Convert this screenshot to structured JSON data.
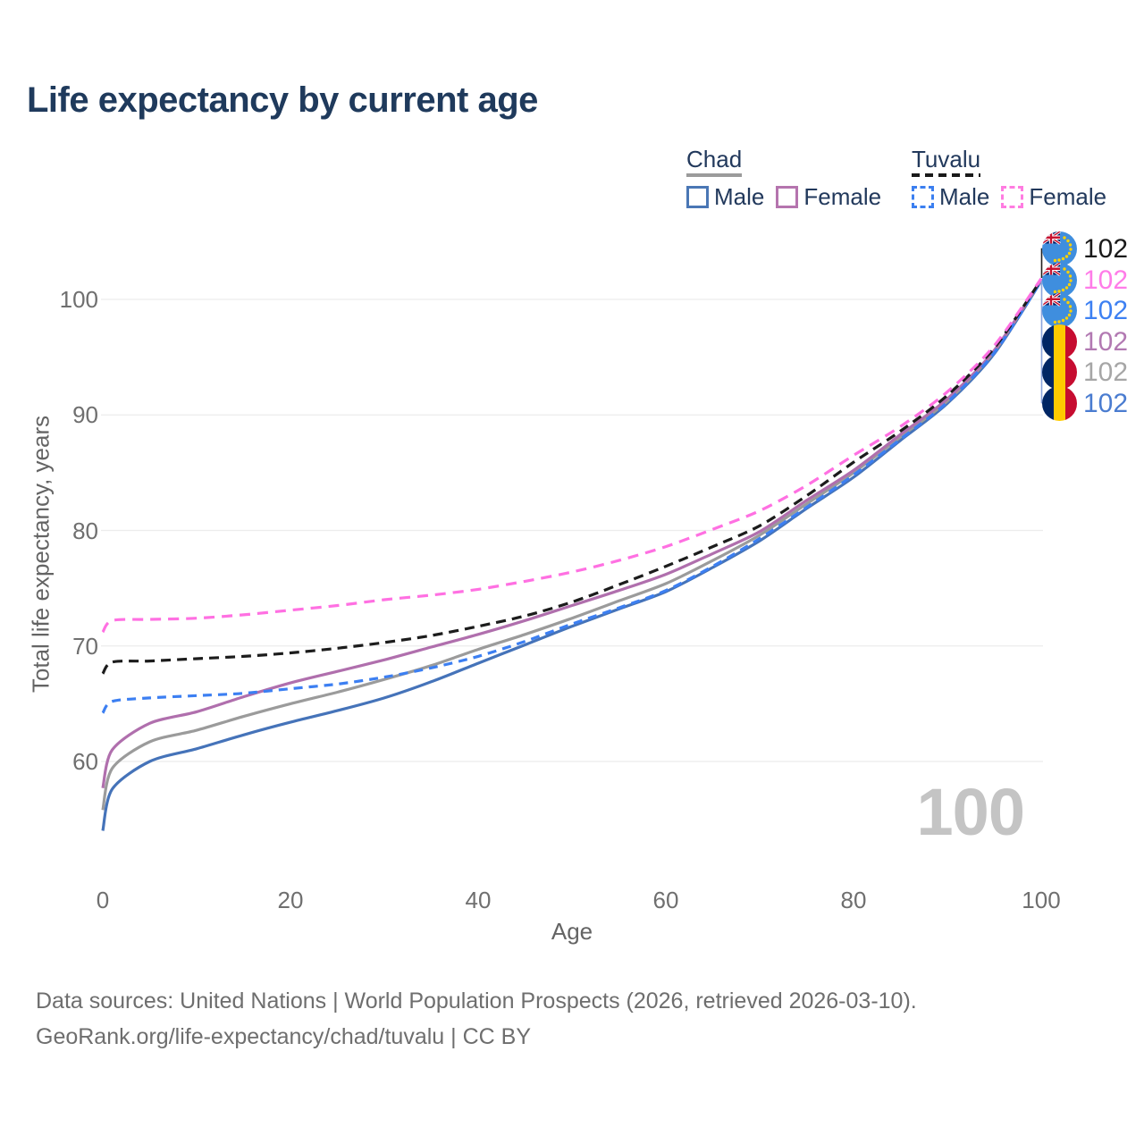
{
  "title": "Life expectancy by current age",
  "watermark": "100",
  "legend": {
    "groups": [
      {
        "name": "Chad",
        "line_style": "solid",
        "underline_color": "#9b9b9b",
        "items": [
          {
            "label": "Male",
            "color": "#4a77b5"
          },
          {
            "label": "Female",
            "color": "#b574ae"
          }
        ]
      },
      {
        "name": "Tuvalu",
        "line_style": "dashed",
        "underline_color": "#1a1a1a",
        "items": [
          {
            "label": "Male",
            "color": "#3b7ff0"
          },
          {
            "label": "Female",
            "color": "#ff7ce1"
          }
        ]
      }
    ]
  },
  "chart_data": {
    "type": "line",
    "title": "Life expectancy by current age",
    "xlabel": "Age",
    "ylabel": "Total life expectancy, years",
    "xlim": [
      0,
      100
    ],
    "ylim": [
      53,
      103
    ],
    "xticks": [
      0,
      20,
      40,
      60,
      80,
      100
    ],
    "yticks": [
      60,
      70,
      80,
      90,
      100
    ],
    "grid": "horizontal",
    "legend_position": "top-right",
    "x": [
      0,
      1,
      5,
      10,
      15,
      20,
      25,
      30,
      35,
      40,
      45,
      50,
      55,
      60,
      65,
      70,
      75,
      80,
      85,
      90,
      95,
      100
    ],
    "series": [
      {
        "id": "chad-male",
        "name": "Chad Male",
        "country": "Chad",
        "sex": "Male",
        "color": "#4573b9",
        "dash": null,
        "values": [
          54.0,
          57.6,
          60.0,
          61.1,
          62.3,
          63.4,
          64.4,
          65.5,
          66.9,
          68.5,
          70.1,
          71.7,
          73.2,
          74.7,
          76.8,
          79.1,
          81.9,
          84.6,
          87.8,
          91.0,
          95.3,
          101.6
        ]
      },
      {
        "id": "chad-all",
        "name": "Chad Both sexes",
        "country": "Chad",
        "sex": "Both",
        "color": "#9b9b9b",
        "dash": null,
        "values": [
          55.8,
          59.4,
          61.7,
          62.7,
          63.9,
          65.0,
          66.0,
          67.1,
          68.3,
          69.7,
          71.0,
          72.4,
          73.9,
          75.4,
          77.4,
          79.6,
          82.3,
          85.0,
          88.1,
          91.2,
          95.5,
          101.7
        ]
      },
      {
        "id": "chad-female",
        "name": "Chad Female",
        "country": "Chad",
        "sex": "Female",
        "color": "#b06fad",
        "dash": null,
        "values": [
          57.7,
          61.0,
          63.3,
          64.3,
          65.6,
          66.8,
          67.8,
          68.8,
          69.9,
          71.0,
          72.2,
          73.5,
          74.8,
          76.2,
          78.0,
          79.9,
          82.6,
          85.2,
          88.3,
          91.4,
          95.6,
          101.7
        ]
      },
      {
        "id": "tuvalu-male",
        "name": "Tuvalu Male",
        "country": "Tuvalu",
        "sex": "Male",
        "color": "#3c7ff2",
        "dash": "10 7",
        "values": [
          64.2,
          65.2,
          65.5,
          65.7,
          65.9,
          66.3,
          66.7,
          67.3,
          68.1,
          69.1,
          70.4,
          71.9,
          73.3,
          74.8,
          76.9,
          79.3,
          82.0,
          84.8,
          87.9,
          91.1,
          95.4,
          101.6
        ]
      },
      {
        "id": "tuvalu-all",
        "name": "Tuvalu Both sexes",
        "country": "Tuvalu",
        "sex": "Both",
        "color": "#1c1c1c",
        "dash": "11 7",
        "values": [
          67.6,
          68.6,
          68.7,
          68.9,
          69.1,
          69.4,
          69.8,
          70.3,
          70.9,
          71.7,
          72.6,
          73.8,
          75.3,
          76.9,
          78.6,
          80.4,
          83.0,
          85.9,
          88.6,
          91.7,
          95.8,
          101.7
        ]
      },
      {
        "id": "tuvalu-female",
        "name": "Tuvalu Female",
        "country": "Tuvalu",
        "sex": "Female",
        "color": "#ff70e2",
        "dash": "12 8",
        "values": [
          71.2,
          72.2,
          72.3,
          72.4,
          72.7,
          73.1,
          73.5,
          74.0,
          74.4,
          74.9,
          75.6,
          76.4,
          77.4,
          78.6,
          80.1,
          81.7,
          83.9,
          86.5,
          89.0,
          92.0,
          96.0,
          101.8
        ]
      }
    ],
    "end_value_annotation": "all series end at 102 at age 100"
  },
  "end_labels": [
    {
      "flag": "tuvalu",
      "value": "102",
      "color": "#1a1a1a"
    },
    {
      "flag": "tuvalu",
      "value": "102",
      "color": "#ff7ce8"
    },
    {
      "flag": "tuvalu",
      "value": "102",
      "color": "#3d80f2"
    },
    {
      "flag": "chad",
      "value": "102",
      "color": "#b279b2"
    },
    {
      "flag": "chad",
      "value": "102",
      "color": "#a6a6a6"
    },
    {
      "flag": "chad",
      "value": "102",
      "color": "#4a7cd0"
    }
  ],
  "footer": {
    "line1": "Data sources: United Nations | World Population Prospects (2026, retrieved 2026-03-10).",
    "line2": "GeoRank.org/life-expectancy/chad/tuvalu | CC BY"
  },
  "colors": {
    "title_text": "#1f3a5c",
    "tick_text": "#6f6f6f",
    "gridline": "#ececec",
    "watermark": "#c4c4c4",
    "footer_text": "#6e6e6e"
  }
}
